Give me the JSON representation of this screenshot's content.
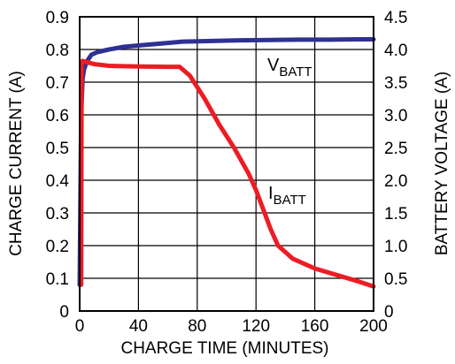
{
  "chart_data": {
    "type": "line",
    "xlabel": "CHARGE TIME (MINUTES)",
    "ylabel": "CHARGE CURRENT (A)",
    "y2label": "BATTERY VOLTAGE (A)",
    "xlim": [
      0,
      200
    ],
    "ylim": [
      0,
      0.9
    ],
    "y2lim": [
      0,
      4.5
    ],
    "grid": true,
    "x_ticks": [
      "0",
      "40",
      "80",
      "120",
      "160",
      "200"
    ],
    "y_ticks": [
      "0",
      "0.1",
      "0.2",
      "0.3",
      "0.4",
      "0.5",
      "0.6",
      "0.7",
      "0.8",
      "0.9"
    ],
    "y2_ticks": [
      "0",
      "0.5",
      "1.0",
      "1.5",
      "2.0",
      "2.5",
      "3.0",
      "3.5",
      "4.0",
      "4.5"
    ],
    "series": [
      {
        "name_main": "V",
        "name_sub": "BATT",
        "axis": "right",
        "color": "#2e3192",
        "x": [
          0,
          1,
          2,
          3,
          5,
          8,
          12,
          20,
          30,
          45,
          60,
          70,
          90,
          110,
          130,
          150,
          170,
          190,
          200
        ],
        "y": [
          0.4,
          3.0,
          3.55,
          3.7,
          3.82,
          3.92,
          3.96,
          4.0,
          4.04,
          4.07,
          4.1,
          4.12,
          4.13,
          4.14,
          4.145,
          4.15,
          4.15,
          4.155,
          4.155
        ]
      },
      {
        "name_main": "I",
        "name_sub": "BATT",
        "axis": "left",
        "color": "#ed1c24",
        "x": [
          1,
          1.3,
          2,
          4,
          10,
          20,
          40,
          60,
          68,
          75,
          85,
          95,
          105,
          115,
          120,
          125,
          130,
          135,
          145,
          160,
          175,
          190,
          200
        ],
        "y": [
          0.08,
          0.76,
          0.765,
          0.762,
          0.755,
          0.75,
          0.748,
          0.747,
          0.747,
          0.72,
          0.65,
          0.57,
          0.5,
          0.42,
          0.37,
          0.31,
          0.25,
          0.2,
          0.16,
          0.13,
          0.11,
          0.09,
          0.075
        ]
      }
    ]
  }
}
